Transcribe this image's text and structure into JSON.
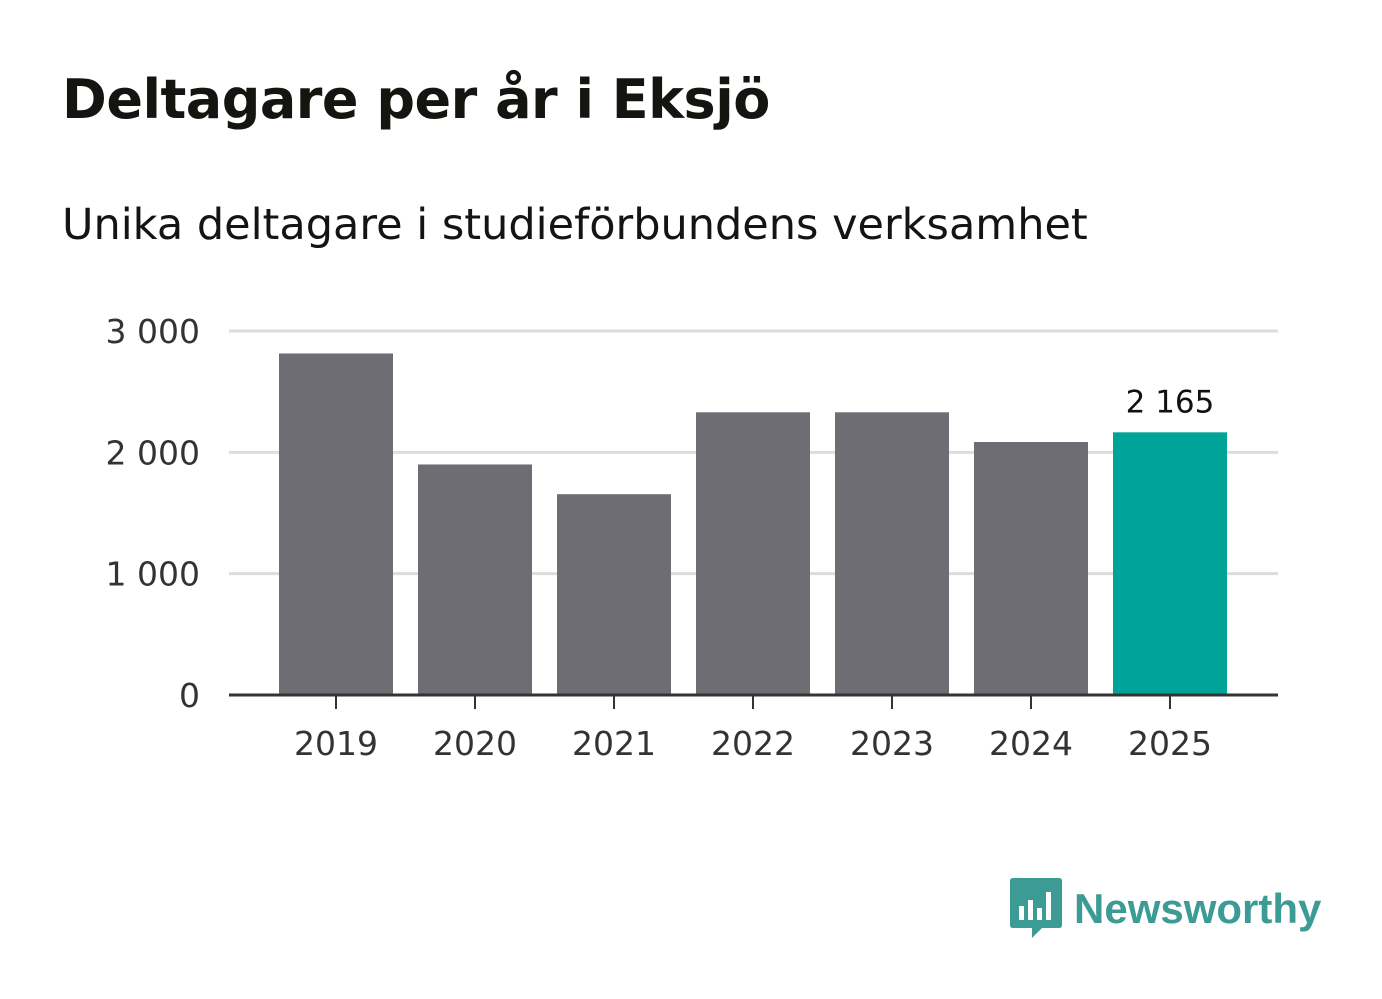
{
  "colors": {
    "bar": "#6e6d73",
    "highlight": "#00a398",
    "grid": "#dddddd",
    "axis": "#333333",
    "brand": "#3d9b96"
  },
  "brand": {
    "name": "Newsworthy",
    "icon": "bar-chart-speech-bubble-icon"
  },
  "chart_data": {
    "type": "bar",
    "title": "Deltagare per år i Eksjö",
    "subtitle": "Unika deltagare i studieförbundens verksamhet",
    "categories": [
      "2019",
      "2020",
      "2021",
      "2022",
      "2023",
      "2024",
      "2025"
    ],
    "values": [
      2815,
      1900,
      1655,
      2330,
      2330,
      2085,
      2165
    ],
    "highlight_index": 6,
    "data_labels": [
      null,
      null,
      null,
      null,
      null,
      null,
      "2 165"
    ],
    "y_ticks": [
      0,
      1000,
      2000,
      3000
    ],
    "y_tick_labels": [
      "0",
      "1 000",
      "2 000",
      "3 000"
    ],
    "ylim": [
      0,
      3000
    ],
    "xlabel": "",
    "ylabel": "",
    "grid": true,
    "legend": "none"
  }
}
